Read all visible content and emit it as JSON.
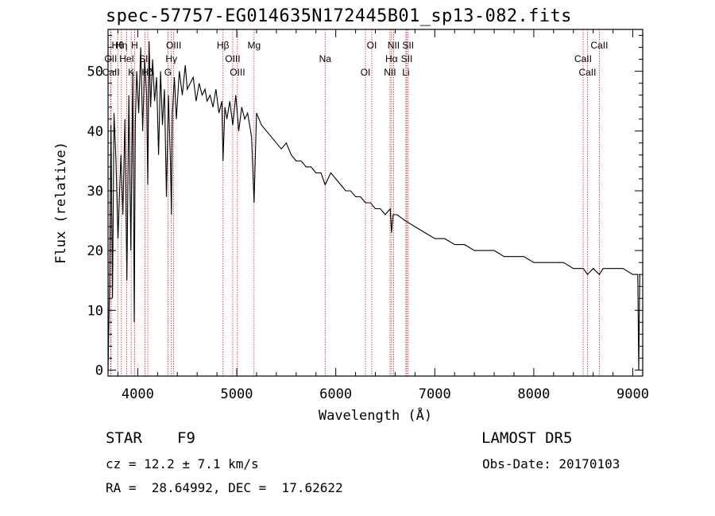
{
  "header": {
    "title": "spec-57757-EG014635N172445B01_sp13-082.fits"
  },
  "info": {
    "object_class": "STAR",
    "subclass": "F9",
    "survey": "LAMOST DR5",
    "cz": "cz = 12.2 ± 7.1 km/s",
    "obs_date": "Obs-Date: 20170103",
    "coords": "RA =  28.64992, DEC =  17.62622"
  },
  "chart_data": {
    "type": "line",
    "title": "spec-57757-EG014635N172445B01_sp13-082.fits",
    "xlabel": "Wavelength (Å)",
    "ylabel": "Flux (relative)",
    "xlim": [
      3700,
      9100
    ],
    "ylim": [
      -1,
      57
    ],
    "xticks": [
      4000,
      5000,
      6000,
      7000,
      8000,
      9000
    ],
    "yticks": [
      0,
      10,
      20,
      30,
      40,
      50
    ],
    "line_color": "#000000",
    "marker_color": "#cc2222",
    "series": [
      {
        "x": [
          3700,
          3715,
          3730,
          3745,
          3760,
          3780,
          3800,
          3815,
          3830,
          3850,
          3870,
          3890,
          3910,
          3930,
          3950,
          3965,
          3975,
          3990,
          4010,
          4030,
          4050,
          4070,
          4090,
          4101,
          4115,
          4130,
          4150,
          4170,
          4190,
          4210,
          4230,
          4250,
          4270,
          4290,
          4310,
          4330,
          4340,
          4350,
          4370,
          4390,
          4420,
          4450,
          4480,
          4500,
          4530,
          4560,
          4590,
          4620,
          4650,
          4680,
          4700,
          4730,
          4760,
          4790,
          4820,
          4850,
          4861,
          4880,
          4900,
          4930,
          4960,
          4990,
          5020,
          5050,
          5080,
          5110,
          5150,
          5175,
          5200,
          5250,
          5300,
          5350,
          5400,
          5450,
          5500,
          5550,
          5600,
          5650,
          5700,
          5750,
          5800,
          5850,
          5893,
          5950,
          6000,
          6050,
          6100,
          6150,
          6200,
          6250,
          6300,
          6350,
          6400,
          6450,
          6500,
          6550,
          6563,
          6580,
          6620,
          6700,
          6800,
          6900,
          7000,
          7100,
          7200,
          7300,
          7400,
          7500,
          7600,
          7700,
          7800,
          7900,
          8000,
          8100,
          8200,
          8300,
          8400,
          8500,
          8542,
          8600,
          8662,
          8700,
          8800,
          8900,
          9000,
          9050,
          9060,
          9070
        ],
        "values": [
          0,
          14,
          41,
          12,
          43,
          35,
          22,
          29,
          36,
          26,
          42,
          15,
          46,
          20,
          50,
          8,
          41,
          50,
          43,
          54,
          40,
          52,
          46,
          31,
          55,
          44,
          52,
          45,
          49,
          36,
          50,
          41,
          47,
          29,
          46,
          35,
          26,
          43,
          49,
          42,
          50,
          46,
          51,
          47,
          48,
          49,
          45,
          48,
          46,
          47,
          45,
          46,
          44,
          47,
          43,
          45,
          35,
          44,
          42,
          45,
          41,
          46,
          40,
          44,
          42,
          43,
          39,
          28,
          43,
          41,
          40,
          39,
          38,
          37,
          38,
          36,
          35,
          35,
          34,
          34,
          33,
          33,
          31,
          33,
          32,
          31,
          30,
          30,
          29,
          29,
          28,
          28,
          27,
          27,
          26,
          27,
          23,
          26,
          26,
          25,
          24,
          23,
          22,
          22,
          21,
          21,
          20,
          20,
          20,
          19,
          19,
          19,
          18,
          18,
          18,
          18,
          17,
          17,
          16,
          17,
          16,
          17,
          17,
          17,
          16,
          16,
          0,
          16
        ]
      }
    ],
    "lines": [
      {
        "name": "Hθ",
        "wavelength": 3798
      },
      {
        "name": "OII",
        "wavelength": 3727
      },
      {
        "name": "CaII",
        "wavelength": 3730
      },
      {
        "name": "Hη",
        "wavelength": 3835
      },
      {
        "name": "HeI",
        "wavelength": 3889
      },
      {
        "name": "K",
        "wavelength": 3934
      },
      {
        "name": "H",
        "wavelength": 3968
      },
      {
        "name": "SII",
        "wavelength": 4072
      },
      {
        "name": "Hδ",
        "wavelength": 4102
      },
      {
        "name": "OIII",
        "wavelength": 4363
      },
      {
        "name": "Hγ",
        "wavelength": 4340
      },
      {
        "name": "G",
        "wavelength": 4305
      },
      {
        "name": "Hβ",
        "wavelength": 4861
      },
      {
        "name": "OIII",
        "wavelength": 4959
      },
      {
        "name": "OIII",
        "wavelength": 5007
      },
      {
        "name": "Mg",
        "wavelength": 5175
      },
      {
        "name": "Na",
        "wavelength": 5893
      },
      {
        "name": "OI",
        "wavelength": 6300
      },
      {
        "name": "OI",
        "wavelength": 6364
      },
      {
        "name": "Hα",
        "wavelength": 6563
      },
      {
        "name": "NII",
        "wavelength": 6548
      },
      {
        "name": "NII",
        "wavelength": 6584
      },
      {
        "name": "SII",
        "wavelength": 6717
      },
      {
        "name": "Li",
        "wavelength": 6708
      },
      {
        "name": "SII",
        "wavelength": 6731
      },
      {
        "name": "CaII",
        "wavelength": 8498
      },
      {
        "name": "CaII",
        "wavelength": 8542
      },
      {
        "name": "CaII",
        "wavelength": 8662
      }
    ]
  }
}
